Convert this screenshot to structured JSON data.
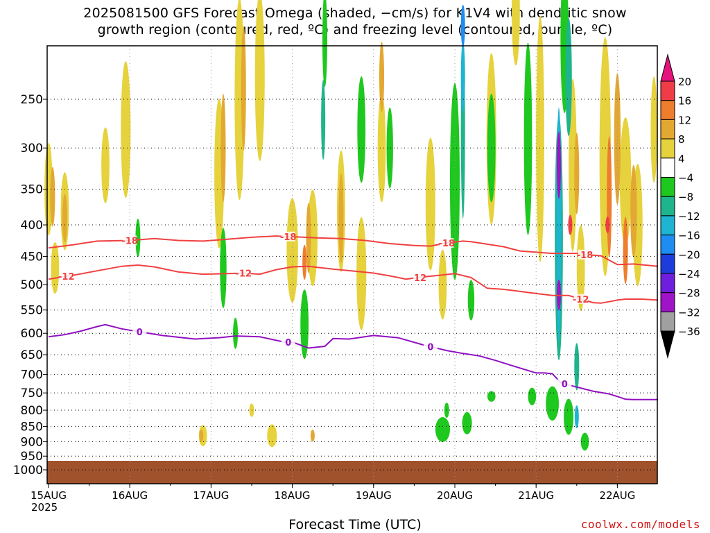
{
  "title": {
    "line1": "2025081500 GFS Forecast Omega (shaded, −cm/s) for K1V4 with dendritic snow",
    "line2": "growth region (contoured, red, ºC) and freezing level (contoured, purple, ºC)"
  },
  "credit": "coolwx.com/models",
  "year": "2025",
  "colors": {
    "dgz_contour": "#f04040",
    "freezing_contour": "#9010c0",
    "ground": "#a0522d"
  },
  "chart_data": {
    "type": "heatmap",
    "xlabel": "Forecast Time (UTC)",
    "ylabel": "",
    "x_ticks": [
      "15AUG",
      "16AUG",
      "17AUG",
      "18AUG",
      "19AUG",
      "20AUG",
      "21AUG",
      "22AUG"
    ],
    "x_range_days": [
      0,
      7.5
    ],
    "y_ticks": [
      250,
      300,
      350,
      400,
      450,
      500,
      550,
      600,
      650,
      700,
      750,
      800,
      850,
      900,
      950,
      1000
    ],
    "y_range_hpa": [
      200,
      1050
    ],
    "grid": "dotted",
    "colorbar": {
      "labels": [
        "20",
        "16",
        "12",
        "8",
        "4",
        "−4",
        "−8",
        "−12",
        "−16",
        "−20",
        "−24",
        "−28",
        "−32",
        "−36"
      ],
      "bins": [
        {
          "range": [
            16,
            20
          ],
          "color": "#f03c46"
        },
        {
          "range": [
            12,
            16
          ],
          "color": "#ee7d2e"
        },
        {
          "range": [
            8,
            12
          ],
          "color": "#e3a832"
        },
        {
          "range": [
            4,
            8
          ],
          "color": "#e6d23c"
        },
        {
          "range": [
            -4,
            4
          ],
          "color": "#ffffff"
        },
        {
          "range": [
            -8,
            -4
          ],
          "color": "#1ec81e"
        },
        {
          "range": [
            -12,
            -8
          ],
          "color": "#1eb48c"
        },
        {
          "range": [
            -16,
            -12
          ],
          "color": "#1eb4d2"
        },
        {
          "range": [
            -20,
            -16
          ],
          "color": "#1e8cf0"
        },
        {
          "range": [
            -24,
            -20
          ],
          "color": "#1e3cdc"
        },
        {
          "range": [
            -28,
            -24
          ],
          "color": "#6e1edc"
        },
        {
          "range": [
            -32,
            -28
          ],
          "color": "#a014c8"
        },
        {
          "range": [
            -36,
            -32
          ],
          "color": "#a0a0a0"
        }
      ],
      "overflow_top_color": "#e6127e",
      "overflow_bottom_color": "#000000"
    },
    "series": [
      {
        "name": "-18",
        "values_day_hpa": [
          [
            0,
            436
          ],
          [
            0.3,
            431
          ],
          [
            0.6,
            425
          ],
          [
            1.0,
            424
          ],
          [
            1.3,
            421
          ],
          [
            1.6,
            424
          ],
          [
            1.9,
            425
          ],
          [
            2.2,
            422
          ],
          [
            2.5,
            419
          ],
          [
            2.8,
            417
          ],
          [
            3.0,
            418
          ],
          [
            3.3,
            420
          ],
          [
            3.6,
            421
          ],
          [
            3.9,
            424
          ],
          [
            4.2,
            429
          ],
          [
            4.5,
            432
          ],
          [
            4.7,
            433
          ],
          [
            4.9,
            428
          ],
          [
            5.1,
            425
          ],
          [
            5.2,
            426
          ],
          [
            5.4,
            430
          ],
          [
            5.6,
            434
          ],
          [
            5.8,
            441
          ],
          [
            6.0,
            443
          ],
          [
            6.2,
            445
          ],
          [
            6.5,
            445
          ],
          [
            6.6,
            447
          ],
          [
            6.8,
            449
          ],
          [
            7.0,
            464
          ],
          [
            7.2,
            463
          ],
          [
            7.5,
            467
          ]
        ]
      },
      {
        "name": "-12",
        "values_day_hpa": [
          [
            0,
            490
          ],
          [
            0.3,
            483
          ],
          [
            0.6,
            475
          ],
          [
            0.9,
            467
          ],
          [
            1.1,
            465
          ],
          [
            1.3,
            468
          ],
          [
            1.6,
            477
          ],
          [
            1.9,
            481
          ],
          [
            2.2,
            480
          ],
          [
            2.4,
            479
          ],
          [
            2.6,
            481
          ],
          [
            2.8,
            473
          ],
          [
            3.0,
            468
          ],
          [
            3.2,
            467
          ],
          [
            3.5,
            472
          ],
          [
            3.8,
            476
          ],
          [
            4.0,
            479
          ],
          [
            4.2,
            484
          ],
          [
            4.4,
            490
          ],
          [
            4.6,
            486
          ],
          [
            4.8,
            483
          ],
          [
            5.0,
            480
          ],
          [
            5.2,
            487
          ],
          [
            5.4,
            507
          ],
          [
            5.6,
            509
          ],
          [
            5.8,
            513
          ],
          [
            6.0,
            517
          ],
          [
            6.2,
            521
          ],
          [
            6.4,
            521
          ],
          [
            6.6,
            530
          ],
          [
            6.7,
            535
          ],
          [
            6.8,
            536
          ],
          [
            7.0,
            530
          ],
          [
            7.1,
            528
          ],
          [
            7.3,
            528
          ],
          [
            7.5,
            530
          ]
        ]
      },
      {
        "name": "0",
        "values_day_hpa": [
          [
            0,
            608
          ],
          [
            0.2,
            603
          ],
          [
            0.4,
            595
          ],
          [
            0.6,
            585
          ],
          [
            0.7,
            581
          ],
          [
            0.9,
            590
          ],
          [
            1.1,
            596
          ],
          [
            1.4,
            605
          ],
          [
            1.8,
            613
          ],
          [
            2.1,
            610
          ],
          [
            2.3,
            606
          ],
          [
            2.6,
            608
          ],
          [
            2.9,
            620
          ],
          [
            3.0,
            620
          ],
          [
            3.2,
            634
          ],
          [
            3.4,
            630
          ],
          [
            3.5,
            612
          ],
          [
            3.7,
            613
          ],
          [
            4.0,
            605
          ],
          [
            4.3,
            610
          ],
          [
            4.6,
            626
          ],
          [
            4.9,
            640
          ],
          [
            5.1,
            647
          ],
          [
            5.3,
            653
          ],
          [
            5.5,
            664
          ],
          [
            5.7,
            677
          ],
          [
            6.0,
            696
          ],
          [
            6.1,
            696
          ],
          [
            6.2,
            698
          ],
          [
            6.3,
            721
          ],
          [
            6.4,
            728
          ],
          [
            6.7,
            745
          ],
          [
            6.9,
            753
          ],
          [
            7.0,
            760
          ],
          [
            7.1,
            768
          ],
          [
            7.2,
            769
          ],
          [
            7.5,
            769
          ]
        ]
      }
    ]
  }
}
